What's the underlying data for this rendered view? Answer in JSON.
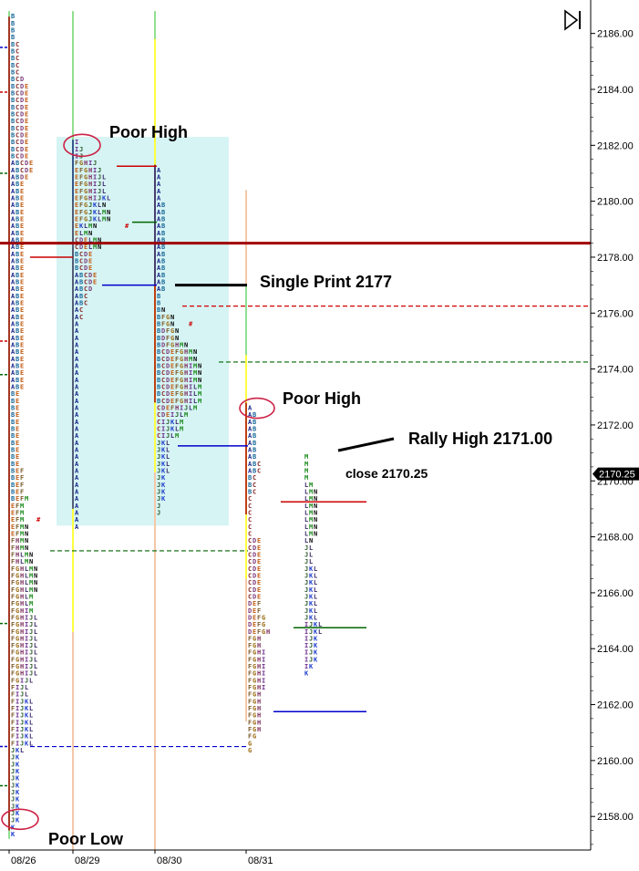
{
  "chart_data": {
    "type": "market-profile",
    "y_axis": {
      "min": 2156.8,
      "max": 2187.0,
      "tick_step": 2,
      "ticks": [
        "2158.00",
        "2160.00",
        "2162.00",
        "2164.00",
        "2166.00",
        "2168.00",
        "2170.00",
        "2172.00",
        "2174.00",
        "2176.00",
        "2178.00",
        "2180.00",
        "2182.00",
        "2184.00",
        "2186.00"
      ]
    },
    "dates": [
      "08/26",
      "08/29",
      "08/30",
      "08/31"
    ],
    "last_price_label": "2170.25",
    "last_price": 2170.25,
    "annotations": [
      {
        "id": "poor-high-1",
        "text": "Poor High"
      },
      {
        "id": "single-print",
        "text": "Single Print 2177"
      },
      {
        "id": "poor-high-2",
        "text": "Poor High"
      },
      {
        "id": "rally-high",
        "text": "Rally High 2171.00"
      },
      {
        "id": "close",
        "text": "close 2170.25"
      },
      {
        "id": "poor-low",
        "text": "Poor Low"
      }
    ],
    "horizontal_levels": [
      {
        "price": 2178.5,
        "color": "#a00000",
        "style": "solid",
        "width": 3,
        "x_from": 0,
        "x_to": 648
      },
      {
        "price": 2176.25,
        "color": "#d00000",
        "style": "dashed",
        "width": 1.2,
        "x_from": 200,
        "x_to": 648
      },
      {
        "price": 2174.25,
        "color": "#006600",
        "style": "dashed",
        "width": 1.2,
        "x_from": 240,
        "x_to": 648
      },
      {
        "price": 2167.5,
        "color": "#006600",
        "style": "dashed",
        "width": 1.2,
        "x_from": 55,
        "x_to": 272
      },
      {
        "price": 2160.5,
        "color": "#0000cc",
        "style": "dashed",
        "width": 1.2,
        "x_from": 33,
        "x_to": 272
      }
    ],
    "profile_levels": [
      {
        "price": 2181.25,
        "color": "#cc0000",
        "x_from": 128,
        "x_to": 172
      },
      {
        "price": 2177.0,
        "color": "#0000cc",
        "x_from": 112,
        "x_to": 172
      },
      {
        "price": 2179.25,
        "color": "#006600",
        "x_from": 145,
        "x_to": 172
      },
      {
        "price": 2178.0,
        "color": "#cc0000",
        "x_from": 33,
        "x_to": 80
      },
      {
        "price": 2171.25,
        "color": "#0000cc",
        "x_from": 195,
        "x_to": 272
      },
      {
        "price": 2169.25,
        "color": "#cc0000",
        "x_from": 308,
        "x_to": 402
      },
      {
        "price": 2164.75,
        "color": "#006600",
        "x_from": 322,
        "x_to": 402
      },
      {
        "price": 2161.75,
        "color": "#0000cc",
        "x_from": 300,
        "x_to": 402
      }
    ],
    "value_area_box": {
      "price_from": 2168.4,
      "price_to": 2182.3
    },
    "profiles": [
      {
        "date": "08/26",
        "x": 12,
        "top": 2186.75,
        "rows": [
          "B",
          "B",
          "B",
          "B",
          "BC",
          "BC",
          "BC",
          "BC",
          "BC",
          "BCD",
          "BCDE",
          "BCDE",
          "BCDE",
          "BCDE",
          "BCDE",
          "BCDE",
          "BCDE",
          "BCDE",
          "BCDE",
          "BCDE",
          "BCDE",
          "ABCDE",
          "ABCDE",
          "ABDE",
          "ABE",
          "ABE",
          "ABE",
          "ABE",
          "ABE",
          "ABE",
          "ABE",
          "ABE",
          "ABE",
          "ABE",
          "ABE",
          "ABE",
          "ABE",
          "ABE",
          "ABE",
          "ABE",
          "ABE",
          "ABE",
          "ABE",
          "ABE",
          "ABE",
          "ABE",
          "ABE",
          "ABE",
          "ABE",
          "ABE",
          "ABE",
          "ABE",
          "ABE",
          "ABE",
          "BE",
          "BE",
          "BE",
          "BE",
          "BE",
          "BE",
          "BE",
          "BE",
          "BE",
          "BE",
          "BE",
          "BEF",
          "BEF",
          "BEF",
          "BEF",
          "BEFM",
          "EFM",
          "EFM",
          "EFM",
          "EFMN",
          "EFMN",
          "FHMN",
          "FHMN",
          "FHLMN",
          "FHLMN",
          "FGHLMN",
          "FGHLMN",
          "FGHLMN",
          "FGHLMN",
          "FGHLM",
          "FGHLM",
          "FGHIM",
          "FGHIJL",
          "FGHIJL",
          "FGHIJL",
          "FGHIJL",
          "FGHIJL",
          "FGHIJL",
          "FGHIJL",
          "FGHIJL",
          "FGHIJL",
          "FGIJL",
          "FIJL",
          "FIJL",
          "FIJKL",
          "FIJKL",
          "FIJKL",
          "FIJKL",
          "FIJKL",
          "FIJKL",
          "FIJKL",
          "JKL",
          "JK",
          "JK",
          "JK",
          "JK",
          "JK",
          "JK",
          "JK",
          "JK",
          "JK",
          "JK",
          "K",
          "K"
        ]
      },
      {
        "date": "08/29",
        "x": 82,
        "top": 2182.25,
        "rows": [
          "I",
          "IJ",
          "IJ",
          "FGHIJ",
          "EFGHIJ",
          "EFGHIJL",
          "EFGHIJL",
          "EFGHIJL",
          "EFGHIJKL",
          "EFGJKLN",
          "EFGJKLMN",
          "EFGJKLMN",
          "EKLMN",
          "ELMN",
          "CDELMN",
          "CDELMN",
          "BCDE",
          "BCDE",
          "BCDE",
          "ABCDE",
          "ABCDE",
          "ABCD",
          "ABC",
          "ABC",
          "AC",
          "AC",
          "A",
          "A",
          "A",
          "A",
          "A",
          "A",
          "A",
          "A",
          "A",
          "A",
          "A",
          "A",
          "A",
          "A",
          "A",
          "A",
          "A",
          "A",
          "A",
          "A",
          "A",
          "A",
          "A",
          "A",
          "A",
          "A",
          "A",
          "A",
          "A",
          "A"
        ]
      },
      {
        "date": "08/30",
        "x": 172,
        "top": 2181.25,
        "rows": [
          "A",
          "A",
          "A",
          "A",
          "A",
          "AB",
          "AB",
          "AB",
          "AB",
          "AB",
          "AB",
          "AB",
          "AB",
          "AB",
          "AB",
          "AB",
          "AB",
          "AB",
          "B",
          "B",
          "BN",
          "BFGN",
          "BFGN",
          "BDFGN",
          "BDFGN",
          "BDFGHMN",
          "BCDEFGHMN",
          "BCDEFGHMN",
          "BCDEFGHIMN",
          "BCDEFGHIMN",
          "BCDEFGHIMN",
          "BCDEFGHILM",
          "BCDEFGHILM",
          "BCDEFGHILM",
          "CDEFHIJLM",
          "CDEIJLM",
          "CIJKLM",
          "CIJKLM",
          "CIJLM",
          "JKL",
          "JKL",
          "JKL",
          "JKL",
          "JKL",
          "JK",
          "JK",
          "JK",
          "JK",
          "J",
          "J"
        ]
      },
      {
        "date": "08/31",
        "x": 272,
        "top": 2172.75,
        "rows": [
          "A",
          "AB",
          "AB",
          "AB",
          "AB",
          "AB",
          "AB",
          "AB",
          "ABC",
          "ABC",
          "BC",
          "BC",
          "BC",
          "C",
          "C",
          "C",
          "C",
          "C",
          "C",
          "CDE",
          "CDE",
          "CDE",
          "CDE",
          "CDE",
          "CDE",
          "CDE",
          "CDE",
          "CDE",
          "DEF",
          "DEF",
          "DEFG",
          "DEFG",
          "DEFGH",
          "FGH",
          "FGH",
          "FGHI",
          "FGHI",
          "FGHI",
          "FGHI",
          "FGHI",
          "FGHI",
          "FGH",
          "FGH",
          "FGH",
          "FGH",
          "FGH",
          "FGH",
          "FG",
          "G",
          "G"
        ]
      },
      {
        "date": "08/31",
        "x": 334,
        "top": 2171.0,
        "rows": [
          "M",
          "M",
          "M",
          "M",
          "LM",
          "LMN",
          "LMN",
          "LMN",
          "LMN",
          "LMN",
          "LMN",
          "LMN",
          "LN",
          "JL",
          "JL",
          "JL",
          "JKL",
          "JKL",
          "JKL",
          "JKL",
          "JKL",
          "JKL",
          "JKL",
          "JKL",
          "IJKL",
          "IJKL",
          "IJK",
          "IJK",
          "IJK",
          "IJK",
          "IK",
          "K"
        ]
      }
    ],
    "letter_colors": {
      "A": "#1a2a8a",
      "B": "#1a6a9a",
      "C": "#8a2a2a",
      "D": "#7a3a7a",
      "E": "#c05a10",
      "F": "#7a5a2a",
      "G": "#9a6a10",
      "H": "#7a2a5a",
      "I": "#6a2a8a",
      "J": "#2a5a2a",
      "K": "#1a3acc",
      "L": "#3a2a6a",
      "M": "#1a8a1a",
      "N": "#0a0a0a"
    },
    "rotation_markers": [
      {
        "price": 2168.75,
        "color": "#cc0000"
      },
      {
        "price": 2179.25,
        "color": "#cc0000"
      },
      {
        "price": 2175.75,
        "color": "#cc0000"
      }
    ]
  }
}
